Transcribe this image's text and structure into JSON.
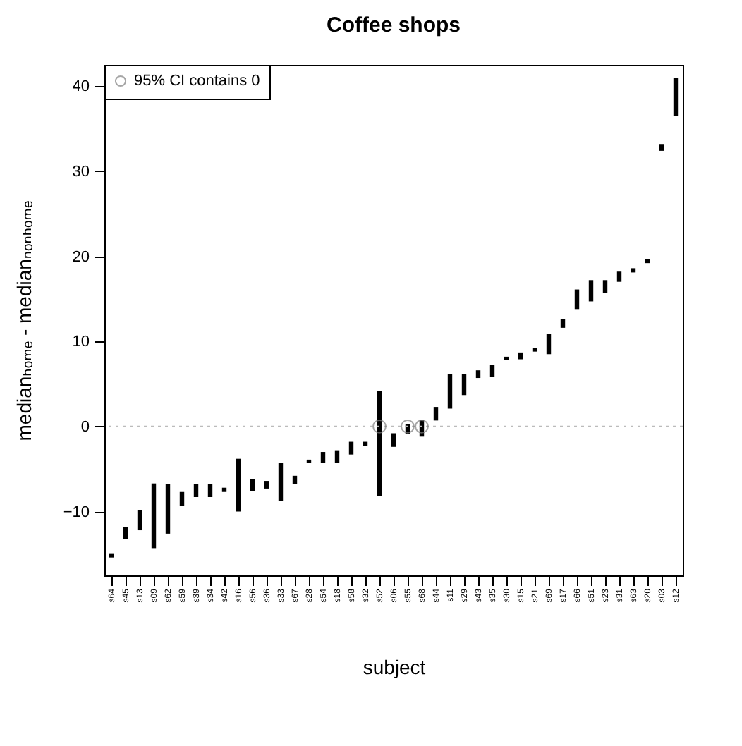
{
  "chart_data": {
    "type": "bar",
    "title": "Coffee shops",
    "xlabel": "subject",
    "ylabel": "medianₕₒₘₑ - medianₙₒₙₕₒₘₑ",
    "categories": [
      "s64",
      "s45",
      "s13",
      "s09",
      "s62",
      "s59",
      "s39",
      "s34",
      "s42",
      "s16",
      "s56",
      "s36",
      "s33",
      "s67",
      "s28",
      "s54",
      "s18",
      "s58",
      "s32",
      "s52",
      "s06",
      "s55",
      "s68",
      "s44",
      "s11",
      "s29",
      "s43",
      "s35",
      "s30",
      "s15",
      "s21",
      "s69",
      "s17",
      "s66",
      "s51",
      "s23",
      "s31",
      "s63",
      "s20",
      "s03",
      "s12"
    ],
    "series": [
      {
        "color": "#000000",
        "base": [
          -15.4,
          -13.2,
          -12.2,
          -14.3,
          -12.6,
          -9.3,
          -8.3,
          -8.3,
          -7.7,
          -10,
          -7.6,
          -7.3,
          -8.8,
          -6.8,
          -4.3,
          -4.3,
          -4.3,
          -3.3,
          -2.3,
          -8.2,
          -2.4,
          -0.9,
          -1.2,
          0.7,
          2.1,
          3.7,
          5.7,
          5.8,
          7.8,
          7.9,
          8.8,
          8.5,
          11.6,
          13.8,
          14.7,
          15.7,
          17.0,
          18.1,
          19.2,
          32.4,
          36.5
        ],
        "values": [
          0.5,
          1.4,
          2.4,
          7.6,
          5.8,
          1.6,
          1.5,
          1.5,
          0.5,
          6.2,
          1.4,
          0.9,
          4.5,
          1.0,
          0.4,
          1.3,
          1.5,
          1.5,
          0.5,
          12.4,
          1.6,
          1.2,
          2.0,
          1.6,
          4.1,
          2.5,
          0.9,
          1.4,
          0.4,
          0.8,
          0.4,
          2.4,
          1.0,
          2.3,
          2.5,
          1.5,
          1.2,
          0.5,
          0.5,
          0.8,
          4.5
        ]
      },
      {
        "type": "scatter",
        "name": "95% CI contains 0",
        "color": "#808080",
        "x": [
          "s52",
          "s55",
          "s68"
        ],
        "values": [
          0,
          0,
          0
        ]
      }
    ],
    "ylim": [
      -17.5,
      42.5
    ],
    "yticks": [
      -10,
      0,
      10,
      20,
      30,
      40
    ],
    "ref_lines": [
      {
        "axis": "y",
        "value": 0,
        "color": "#bbbbbb",
        "line_style": "dotted"
      }
    ],
    "legend": "top left",
    "marker": "circle",
    "grid": false
  }
}
